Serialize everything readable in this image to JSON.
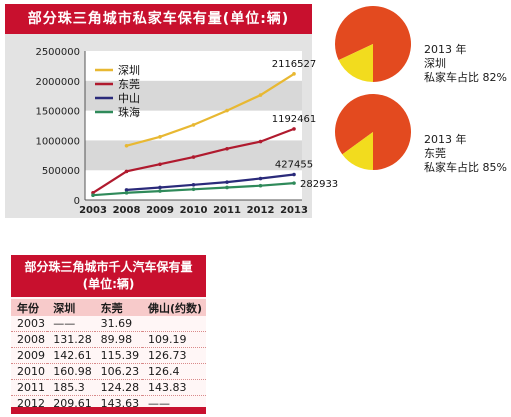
{
  "chart_data": [
    {
      "type": "line",
      "title": "部分珠三角城市私家车保有量(单位:辆)",
      "categories": [
        "2003",
        "2008",
        "2009",
        "2010",
        "2011",
        "2012",
        "2013"
      ],
      "y_ticks": [
        "2500000",
        "2000000",
        "1500000",
        "1000000",
        "500000",
        "0"
      ],
      "ylim": [
        0,
        2500000
      ],
      "series": [
        {
          "name": "深圳",
          "color": "#e8b832",
          "values": [
            null,
            910000,
            1060000,
            1260000,
            1500000,
            1760000,
            2116527
          ],
          "end_label": "2116527"
        },
        {
          "name": "东莞",
          "color": "#b01a2e",
          "values": [
            120000,
            480000,
            600000,
            720000,
            860000,
            980000,
            1192461
          ],
          "end_label": "1192461"
        },
        {
          "name": "中山",
          "color": "#2a2a7a",
          "values": [
            null,
            170000,
            210000,
            255000,
            300000,
            360000,
            427455
          ],
          "end_label": "427455"
        },
        {
          "name": "珠海",
          "color": "#2f8a5a",
          "values": [
            80000,
            120000,
            150000,
            180000,
            210000,
            240000,
            282933
          ],
          "end_label": "282933"
        }
      ],
      "grid_bands": true,
      "legend_position": "top-left"
    },
    {
      "type": "pie",
      "year_label": "2013 年",
      "city": "深圳",
      "caption": "私家车占比 82%",
      "values": [
        82,
        18
      ],
      "colors": [
        "#e34a1f",
        "#f2dc1e"
      ]
    },
    {
      "type": "pie",
      "year_label": "2013 年",
      "city": "东莞",
      "caption": "私家车占比 85%",
      "values": [
        85,
        15
      ],
      "colors": [
        "#e34a1f",
        "#f2dc1e"
      ]
    },
    {
      "type": "table",
      "title": "部分珠三角城市千人汽车保有量",
      "subtitle": "(单位:辆)",
      "columns": [
        "年份",
        "深圳",
        "东莞",
        "佛山(约数)"
      ],
      "rows": [
        [
          "2003",
          "——",
          "31.69",
          ""
        ],
        [
          "2008",
          "131.28",
          "89.98",
          "109.19"
        ],
        [
          "2009",
          "142.61",
          "115.39",
          "126.73"
        ],
        [
          "2010",
          "160.98",
          "106.23",
          "126.4"
        ],
        [
          "2011",
          "185.3",
          "124.28",
          "143.83"
        ],
        [
          "2012",
          "209.61",
          "143.63",
          "——"
        ]
      ]
    }
  ]
}
